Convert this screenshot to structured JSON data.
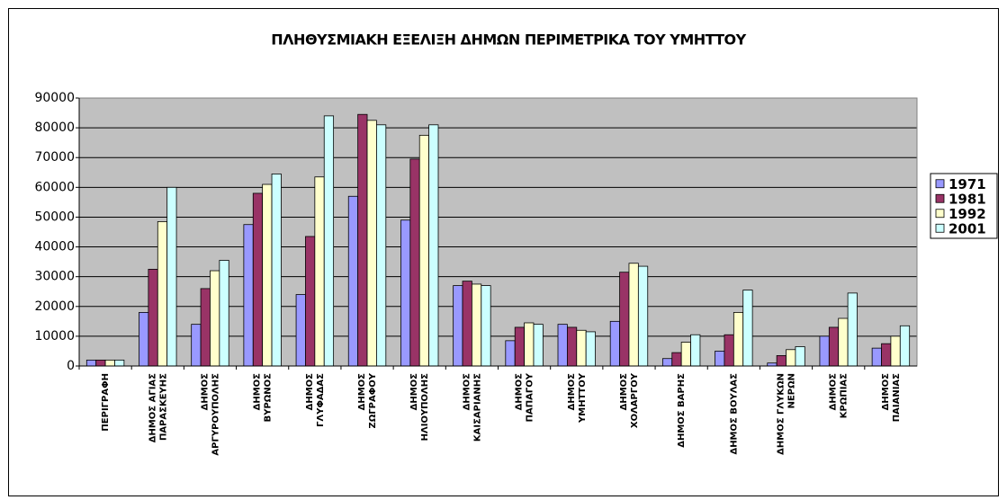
{
  "chart_data": {
    "type": "bar",
    "title": "ΠΛΗΘΥΣΜΙΑΚΗ ΕΞΕΛΙΞΗ ΔΗΜΩΝ ΠΕΡΙΜΕΤΡΙΚΑ ΤΟΥ ΥΜΗΤΤΟΥ",
    "categories": [
      "ΠΕΡΙΓΡΑΦΗ",
      "ΔΗΜΟΣ ΑΓΙΑΣ\nΠΑΡΑΣΚΕΥΗΣ",
      "ΔΗΜΟΣ\nΑΡΓΥΡΟΥΠΟΛΗΣ",
      "ΔΗΜΟΣ\nΒΥΡΩΝΟΣ",
      "ΔΗΜΟΣ\nΓΛΥΦΑΔΑΣ",
      "ΔΗΜΟΣ\nΖΩΓΡΑΦΟΥ",
      "ΔΗΜΟΣ\nΗΛΙΟΥΠΟΛΗΣ",
      "ΔΗΜΟΣ\nΚΑΙΣΑΡΙΑΝΗΣ",
      "ΔΗΜΟΣ\nΠΑΠΑΓΟΥ",
      "ΔΗΜΟΣ\nΥΜΗΤΤΟΥ",
      "ΔΗΜΟΣ\nΧΟΛΑΡΓΟΥ",
      "ΔΗΜΟΣ ΒΑΡΗΣ",
      "ΔΗΜΟΣ ΒΟΥΛΑΣ",
      "ΔΗΜΟΣ ΓΛΥΚΩΝ\nΝΕΡΩΝ",
      "ΔΗΜΟΣ\nΚΡΩΠΙΑΣ",
      "ΔΗΜΟΣ\nΠΑΙΑΝΙΑΣ"
    ],
    "series": [
      {
        "name": "1971",
        "color": "#9999ff",
        "values": [
          2000,
          18000,
          14000,
          47500,
          24000,
          57000,
          49000,
          27000,
          8500,
          14000,
          15000,
          2500,
          5000,
          1000,
          10000,
          6000
        ]
      },
      {
        "name": "1981",
        "color": "#993366",
        "values": [
          2000,
          32500,
          26000,
          58000,
          43500,
          84500,
          69500,
          28500,
          13000,
          13000,
          31500,
          4500,
          10500,
          3500,
          13000,
          7500
        ]
      },
      {
        "name": "1992",
        "color": "#ffffcc",
        "values": [
          2000,
          48500,
          32000,
          61000,
          63500,
          82500,
          77500,
          27500,
          14500,
          12000,
          34500,
          8000,
          18000,
          5500,
          16000,
          10000
        ]
      },
      {
        "name": "2001",
        "color": "#ccffff",
        "values": [
          2000,
          60000,
          35500,
          64500,
          84000,
          81000,
          81000,
          27000,
          14000,
          11500,
          33500,
          10500,
          25500,
          6500,
          24500,
          13500
        ]
      }
    ],
    "ylim": [
      0,
      90000
    ],
    "yticks": [
      0,
      10000,
      20000,
      30000,
      40000,
      50000,
      60000,
      70000,
      80000,
      90000
    ],
    "grid": true,
    "legend": "right",
    "plot_background": "#c0c0c0"
  }
}
